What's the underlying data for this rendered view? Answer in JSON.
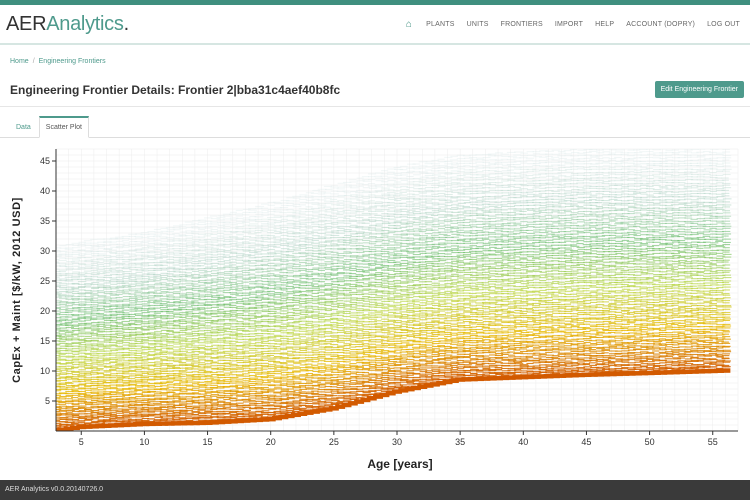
{
  "brand": {
    "name_prefix": "AER",
    "name_highlight": "Analytics",
    "name_suffix": "."
  },
  "nav": {
    "home_icon": "home-icon",
    "items": [
      "PLANTS",
      "UNITS",
      "FRONTIERS",
      "IMPORT",
      "HELP",
      "ACCOUNT (DOPRY)",
      "LOG OUT"
    ]
  },
  "breadcrumb": {
    "home": "Home",
    "current": "Engineering Frontiers"
  },
  "page": {
    "title": "Engineering Frontier Details: Frontier 2|bba31c4aef40b8fc",
    "edit_button": "Edit Engineering Frontier"
  },
  "tabs": [
    "Data",
    "Scatter Plot"
  ],
  "footer": {
    "version": "AER Analytics v0.0.20140726.0"
  },
  "colors": {
    "accent": "#4e9a8c",
    "nav_bar": "#3f8f7f",
    "footer": "#3a3a3a"
  },
  "chart_data": {
    "type": "scatter",
    "xlabel": "Age [years]",
    "ylabel": "CapEx + Maint [$/kW, 2012 USD]",
    "xlim": [
      3,
      57
    ],
    "ylim": [
      0,
      47
    ],
    "x_ticks": [
      5,
      10,
      15,
      20,
      25,
      30,
      35,
      40,
      45,
      50,
      55
    ],
    "y_ticks": [
      5,
      10,
      15,
      20,
      25,
      30,
      35,
      40,
      45
    ],
    "grid": true,
    "age_range": [
      3,
      56
    ],
    "lower_frontier": {
      "x": [
        3,
        5,
        10,
        15,
        20,
        25,
        30,
        35,
        40,
        45,
        50,
        56
      ],
      "y": [
        0.3,
        0.9,
        1.4,
        1.6,
        2.2,
        4.0,
        6.8,
        8.8,
        9.2,
        9.6,
        9.9,
        10.3
      ]
    },
    "upper_frontier": {
      "x": [
        3,
        5,
        10,
        15,
        20,
        25,
        30,
        35,
        40,
        45,
        50,
        56
      ],
      "y": [
        31,
        32,
        33.5,
        36,
        38.5,
        41.5,
        44.5,
        46.5,
        47,
        47.5,
        47.5,
        47.5
      ]
    },
    "color_scale": [
      "#d25a00",
      "#e8b800",
      "#b9d640",
      "#5fb85f",
      "#a9cfbf",
      "#dbe8e8"
    ]
  }
}
